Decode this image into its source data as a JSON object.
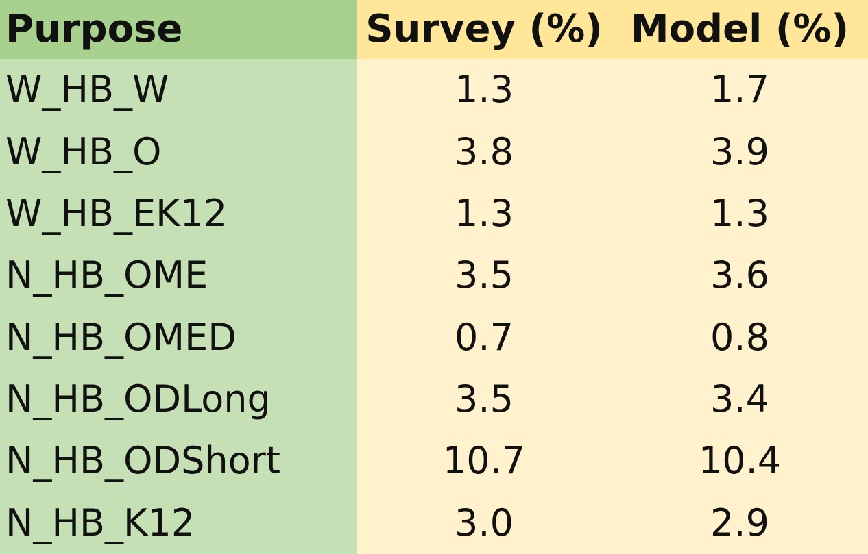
{
  "table": {
    "headers": {
      "purpose": "Purpose",
      "survey": "Survey (%)",
      "model": "Model (%)"
    },
    "rows": [
      {
        "purpose": "W_HB_W",
        "survey": "1.3",
        "model": "1.7"
      },
      {
        "purpose": "W_HB_O",
        "survey": "3.8",
        "model": "3.9"
      },
      {
        "purpose": "W_HB_EK12",
        "survey": "1.3",
        "model": "1.3"
      },
      {
        "purpose": "N_HB_OME",
        "survey": "3.5",
        "model": "3.6"
      },
      {
        "purpose": "N_HB_OMED",
        "survey": "0.7",
        "model": "0.8"
      },
      {
        "purpose": "N_HB_ODLong",
        "survey": "3.5",
        "model": "3.4"
      },
      {
        "purpose": "N_HB_ODShort",
        "survey": "10.7",
        "model": "10.4"
      },
      {
        "purpose": "N_HB_K12",
        "survey": "3.0",
        "model": "2.9"
      }
    ]
  },
  "colors": {
    "header_purpose_bg": "#A9D18E",
    "body_purpose_bg": "#C5E0B4",
    "header_value_bg": "#FFE699",
    "body_value_bg": "#FFF2CC"
  }
}
